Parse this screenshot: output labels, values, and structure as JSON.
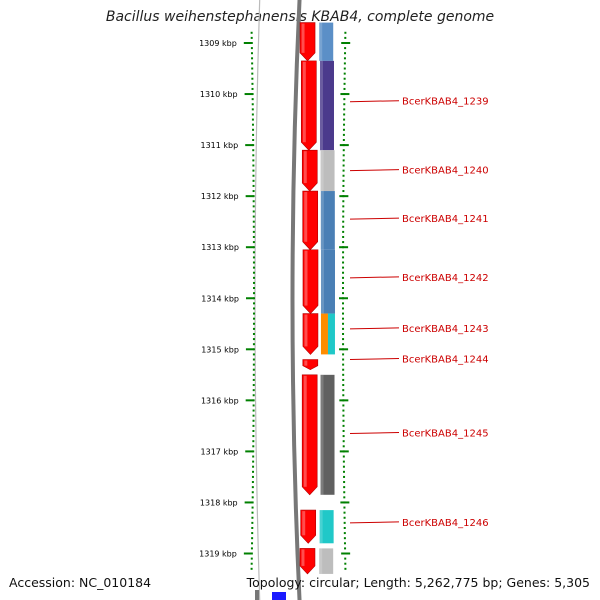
{
  "title": "Bacillus weihenstephanensis KBAB4, complete genome",
  "footer": {
    "accession": "Accession: NC_010184",
    "summary": "Topology: circular; Length: 5,262,775 bp; Genes: 5,305"
  },
  "chart_data": {
    "type": "diagram",
    "axis": {
      "unit": "kbp",
      "ticks": [
        1309,
        1310,
        1311,
        1312,
        1313,
        1314,
        1315,
        1316,
        1317,
        1318,
        1319
      ],
      "tick_labels": [
        "1309 kbp",
        "1310 kbp",
        "1311 kbp",
        "1312 kbp",
        "1313 kbp",
        "1314 kbp",
        "1315 kbp",
        "1316 kbp",
        "1317 kbp",
        "1318 kbp",
        "1319 kbp"
      ]
    },
    "genes": [
      {
        "label": "",
        "start": 1308.6,
        "end": 1309.35,
        "cog_color": "#5b8fc7"
      },
      {
        "label": "BcerKBAB4_1239",
        "start": 1309.35,
        "end": 1311.1,
        "cog_color": "#4b3a8c"
      },
      {
        "label": "BcerKBAB4_1240",
        "start": 1311.1,
        "end": 1311.9,
        "cog_color": "#bdbdbd"
      },
      {
        "label": "BcerKBAB4_1241",
        "start": 1311.9,
        "end": 1313.05,
        "cog_color": "#4a7fb5"
      },
      {
        "label": "BcerKBAB4_1242",
        "start": 1313.05,
        "end": 1314.3,
        "cog_color": "#4a7fb5"
      },
      {
        "label": "BcerKBAB4_1243",
        "start": 1314.3,
        "end": 1315.1,
        "cog_color": "#ff8c00",
        "cog_color2": "#20c8c8"
      },
      {
        "label": "BcerKBAB4_1244",
        "start": 1315.2,
        "end": 1315.4,
        "cog_color": ""
      },
      {
        "label": "BcerKBAB4_1245",
        "start": 1315.5,
        "end": 1317.85,
        "cog_color": "#606060"
      },
      {
        "label": "BcerKBAB4_1246",
        "start": 1318.15,
        "end": 1318.8,
        "cog_color": "#20c8c8"
      },
      {
        "label": "",
        "start": 1318.9,
        "end": 1319.4,
        "cog_color": "#bdbdbd"
      }
    ],
    "label_positions_kbp": [
      1310.15,
      1311.5,
      1312.45,
      1313.6,
      1314.6,
      1315.2,
      1316.65,
      1318.4
    ]
  },
  "colors": {
    "strand": "#ff0000",
    "strand_highlight": "#ff8080",
    "label": "#cc0000",
    "tick": "#008000"
  }
}
